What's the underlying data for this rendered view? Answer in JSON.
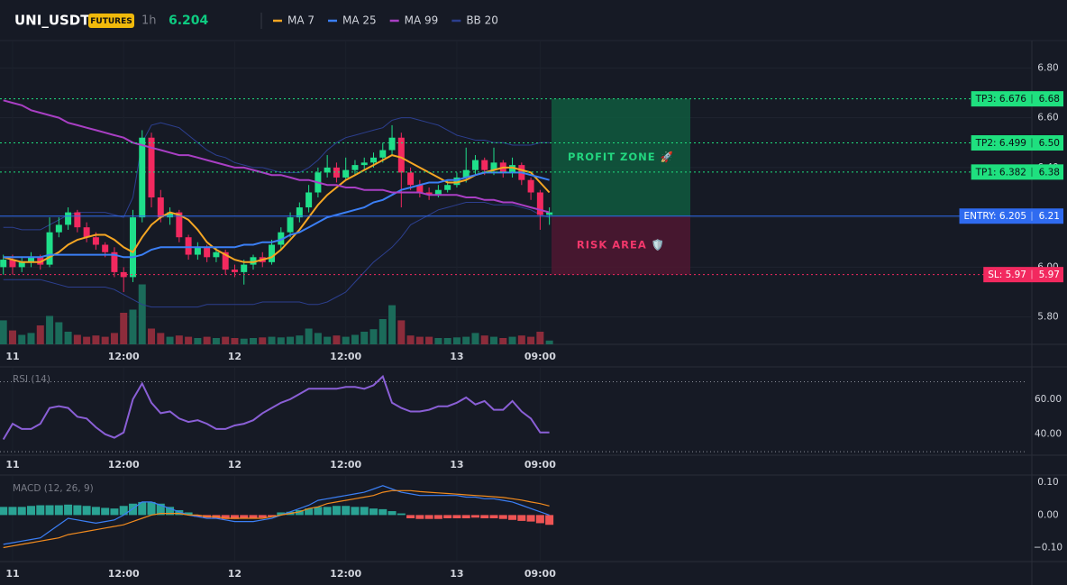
{
  "header": {
    "symbol": "UNI_USDT",
    "badge": "FUTURES",
    "interval": "1h",
    "price": 6.204
  },
  "chart_data": [
    {
      "type": "candlestick",
      "categories": [
        null,
        "11",
        null,
        null,
        null,
        null,
        null,
        null,
        null,
        null,
        null,
        null,
        null,
        "12:00",
        null,
        null,
        null,
        null,
        null,
        null,
        null,
        null,
        null,
        null,
        null,
        "12",
        null,
        null,
        null,
        null,
        null,
        null,
        null,
        null,
        null,
        null,
        null,
        "12:00",
        null,
        null,
        null,
        null,
        null,
        null,
        null,
        null,
        null,
        null,
        null,
        "13",
        null,
        null,
        null,
        null,
        null,
        null,
        null,
        null,
        "09:00",
        null
      ],
      "open": [
        6.0,
        6.03,
        6.0,
        6.02,
        6.04,
        6.01,
        6.14,
        6.17,
        6.22,
        6.16,
        6.12,
        6.09,
        6.06,
        5.98,
        5.96,
        6.2,
        6.52,
        6.28,
        6.2,
        6.22,
        6.12,
        6.05,
        6.08,
        6.04,
        6.06,
        5.99,
        5.98,
        6.01,
        6.04,
        6.02,
        6.09,
        6.14,
        6.2,
        6.24,
        6.3,
        6.38,
        6.4,
        6.36,
        6.39,
        6.41,
        6.42,
        6.44,
        6.47,
        6.52,
        6.38,
        6.33,
        6.3,
        6.29,
        6.31,
        6.33,
        6.36,
        6.39,
        6.43,
        6.39,
        6.42,
        6.38,
        6.41,
        6.35,
        6.3,
        6.21
      ],
      "high": [
        6.05,
        6.05,
        6.04,
        6.06,
        6.05,
        6.2,
        6.2,
        6.24,
        6.23,
        6.18,
        6.14,
        6.1,
        6.08,
        6.0,
        6.23,
        6.55,
        6.54,
        6.31,
        6.24,
        6.23,
        6.13,
        6.1,
        6.09,
        6.08,
        6.07,
        6.01,
        6.03,
        6.05,
        6.06,
        6.11,
        6.16,
        6.22,
        6.26,
        6.33,
        6.4,
        6.45,
        6.42,
        6.44,
        6.43,
        6.44,
        6.46,
        6.5,
        6.57,
        6.54,
        6.4,
        6.35,
        6.32,
        6.33,
        6.35,
        6.38,
        6.48,
        6.45,
        6.44,
        6.48,
        6.43,
        6.44,
        6.42,
        6.36,
        6.31,
        6.24
      ],
      "low": [
        5.97,
        5.97,
        5.98,
        6.0,
        5.99,
        6.0,
        6.12,
        6.15,
        6.14,
        6.1,
        6.07,
        6.04,
        5.96,
        5.9,
        5.94,
        6.18,
        6.24,
        6.18,
        6.17,
        6.1,
        6.03,
        6.03,
        6.02,
        6.02,
        5.97,
        5.96,
        5.93,
        5.99,
        6.0,
        6.01,
        6.07,
        6.12,
        6.18,
        6.22,
        6.28,
        6.36,
        6.34,
        6.35,
        6.37,
        6.39,
        6.4,
        6.42,
        6.45,
        6.24,
        6.31,
        6.28,
        6.27,
        6.28,
        6.3,
        6.32,
        6.34,
        6.37,
        6.37,
        6.37,
        6.36,
        6.36,
        6.33,
        6.27,
        6.15,
        6.17
      ],
      "close": [
        6.03,
        6.0,
        6.02,
        6.04,
        6.01,
        6.14,
        6.17,
        6.22,
        6.16,
        6.12,
        6.09,
        6.06,
        5.98,
        5.96,
        6.2,
        6.52,
        6.28,
        6.2,
        6.22,
        6.12,
        6.05,
        6.08,
        6.04,
        6.06,
        5.99,
        5.98,
        6.01,
        6.04,
        6.02,
        6.09,
        6.14,
        6.2,
        6.24,
        6.3,
        6.38,
        6.4,
        6.36,
        6.39,
        6.41,
        6.42,
        6.44,
        6.47,
        6.52,
        6.38,
        6.33,
        6.3,
        6.29,
        6.31,
        6.33,
        6.36,
        6.39,
        6.43,
        6.39,
        6.42,
        6.38,
        6.41,
        6.35,
        6.3,
        6.21,
        6.22
      ],
      "volume": [
        38,
        22,
        15,
        18,
        30,
        45,
        35,
        20,
        15,
        12,
        14,
        12,
        18,
        50,
        55,
        95,
        25,
        18,
        12,
        14,
        12,
        10,
        12,
        10,
        12,
        10,
        9,
        10,
        11,
        12,
        11,
        12,
        14,
        25,
        18,
        12,
        14,
        12,
        15,
        20,
        24,
        40,
        62,
        38,
        14,
        12,
        12,
        10,
        10,
        11,
        12,
        18,
        14,
        12,
        10,
        12,
        14,
        12,
        20,
        6
      ],
      "volume_ylim": [
        0,
        100
      ],
      "up_color": "#1fdf8a",
      "down_color": "#f2295f",
      "volume_up_color": "#1b6b5a",
      "volume_down_color": "#8c2c3b",
      "series": [
        {
          "name": "MA 7",
          "color": "#f5a623",
          "values": [
            6.04,
            6.03,
            6.02,
            6.02,
            6.02,
            6.04,
            6.06,
            6.09,
            6.11,
            6.12,
            6.13,
            6.13,
            6.11,
            6.08,
            6.06,
            6.12,
            6.17,
            6.2,
            6.22,
            6.21,
            6.19,
            6.15,
            6.1,
            6.07,
            6.05,
            6.03,
            6.02,
            6.02,
            6.03,
            6.04,
            6.07,
            6.11,
            6.15,
            6.2,
            6.25,
            6.29,
            6.32,
            6.35,
            6.37,
            6.39,
            6.41,
            6.43,
            6.45,
            6.44,
            6.42,
            6.4,
            6.38,
            6.36,
            6.34,
            6.34,
            6.35,
            6.37,
            6.38,
            6.39,
            6.4,
            6.4,
            6.39,
            6.38,
            6.34,
            6.3
          ]
        },
        {
          "name": "MA 25",
          "color": "#3b7ff5",
          "values": [
            6.04,
            6.04,
            6.04,
            6.04,
            6.04,
            6.05,
            6.05,
            6.05,
            6.05,
            6.05,
            6.05,
            6.05,
            6.05,
            6.04,
            6.04,
            6.05,
            6.07,
            6.08,
            6.08,
            6.08,
            6.08,
            6.08,
            6.08,
            6.08,
            6.08,
            6.08,
            6.09,
            6.09,
            6.1,
            6.1,
            6.11,
            6.13,
            6.14,
            6.16,
            6.18,
            6.2,
            6.21,
            6.22,
            6.23,
            6.24,
            6.26,
            6.27,
            6.29,
            6.31,
            6.32,
            6.33,
            6.34,
            6.34,
            6.35,
            6.35,
            6.36,
            6.37,
            6.38,
            6.38,
            6.38,
            6.38,
            6.38,
            6.37,
            6.36,
            6.35
          ]
        },
        {
          "name": "MA 99",
          "color": "#a93fc4",
          "values": [
            6.67,
            6.66,
            6.65,
            6.63,
            6.62,
            6.61,
            6.6,
            6.58,
            6.57,
            6.56,
            6.55,
            6.54,
            6.53,
            6.52,
            6.5,
            6.49,
            6.48,
            6.47,
            6.46,
            6.45,
            6.45,
            6.44,
            6.43,
            6.42,
            6.41,
            6.4,
            6.4,
            6.39,
            6.38,
            6.37,
            6.37,
            6.36,
            6.35,
            6.35,
            6.34,
            6.33,
            6.33,
            6.32,
            6.32,
            6.31,
            6.31,
            6.31,
            6.3,
            6.3,
            6.3,
            6.3,
            6.29,
            6.29,
            6.29,
            6.29,
            6.28,
            6.28,
            6.27,
            6.27,
            6.26,
            6.26,
            6.25,
            6.24,
            6.23,
            6.22
          ]
        },
        {
          "name": "BB 20",
          "color": "#2c3f8f",
          "upper": [
            6.16,
            6.16,
            6.15,
            6.15,
            6.15,
            6.17,
            6.19,
            6.21,
            6.22,
            6.22,
            6.22,
            6.22,
            6.21,
            6.2,
            6.28,
            6.5,
            6.57,
            6.58,
            6.57,
            6.56,
            6.53,
            6.5,
            6.47,
            6.45,
            6.44,
            6.42,
            6.41,
            6.4,
            6.4,
            6.39,
            6.38,
            6.38,
            6.38,
            6.4,
            6.43,
            6.47,
            6.5,
            6.52,
            6.53,
            6.54,
            6.55,
            6.56,
            6.59,
            6.6,
            6.6,
            6.59,
            6.58,
            6.57,
            6.55,
            6.53,
            6.52,
            6.51,
            6.51,
            6.5,
            6.5,
            6.49,
            6.49,
            6.49,
            6.5,
            6.5
          ],
          "lower": [
            5.95,
            5.95,
            5.95,
            5.95,
            5.95,
            5.94,
            5.93,
            5.92,
            5.92,
            5.92,
            5.92,
            5.92,
            5.91,
            5.89,
            5.87,
            5.85,
            5.84,
            5.84,
            5.84,
            5.84,
            5.84,
            5.84,
            5.85,
            5.85,
            5.85,
            5.85,
            5.85,
            5.85,
            5.86,
            5.86,
            5.86,
            5.86,
            5.86,
            5.85,
            5.85,
            5.86,
            5.88,
            5.9,
            5.94,
            5.98,
            6.02,
            6.05,
            6.08,
            6.12,
            6.17,
            6.19,
            6.21,
            6.23,
            6.24,
            6.25,
            6.26,
            6.26,
            6.26,
            6.25,
            6.25,
            6.25,
            6.24,
            6.23,
            6.21,
            6.2
          ]
        }
      ],
      "ylim": [
        5.69,
        6.91
      ],
      "yticks": [
        {
          "value": 5.8,
          "label": "5.80"
        },
        {
          "value": 6.0,
          "label": "6.00"
        },
        {
          "value": 6.2,
          "label": "6.20"
        },
        {
          "value": 6.4,
          "label": "6.40"
        },
        {
          "value": 6.6,
          "label": "6.60"
        },
        {
          "value": 6.8,
          "label": "6.80"
        }
      ],
      "grid": true,
      "levels": [
        {
          "name": "TP3: 6.676",
          "value": 6.676,
          "value_label": "6.68",
          "color": "#1fe07f",
          "style": "dotted"
        },
        {
          "name": "TP2: 6.499",
          "value": 6.499,
          "value_label": "6.50",
          "color": "#1fe07f",
          "style": "dotted"
        },
        {
          "name": "TP1: 6.382",
          "value": 6.382,
          "value_label": "6.38",
          "color": "#1fe07f",
          "style": "dotted"
        },
        {
          "name": "ENTRY: 6.205",
          "value": 6.205,
          "value_label": "6.21",
          "color": "#2f6bf0",
          "style": "solid"
        },
        {
          "name": "SL: 5.97",
          "value": 5.97,
          "value_label": "5.97",
          "color": "#f2295f",
          "style": "dotted"
        }
      ],
      "zones": [
        {
          "label": "PROFIT ZONE 🚀",
          "color": "#0f5a3e",
          "text_color": "#22d67f"
        },
        {
          "label": "RISK AREA 🛡️",
          "color": "#4f1731",
          "text_color": "#f2376b"
        }
      ]
    },
    {
      "type": "line",
      "title": "RSI (14)",
      "color": "#8a5fd6",
      "values": [
        37,
        46,
        43,
        43,
        46,
        55,
        56,
        55,
        50,
        49,
        44,
        40,
        38,
        41,
        60,
        69,
        58,
        52,
        53,
        49,
        47,
        48,
        46,
        43,
        43,
        45,
        46,
        48,
        52,
        55,
        58,
        60,
        63,
        66,
        66,
        66,
        66,
        67,
        67,
        66,
        68,
        73,
        58,
        55,
        53,
        53,
        54,
        56,
        56,
        58,
        61,
        57,
        59,
        54,
        54,
        59,
        53,
        49,
        41,
        41
      ],
      "ylim": [
        28,
        78
      ],
      "yticks": [
        {
          "value": 40,
          "label": "40.00"
        },
        {
          "value": 60,
          "label": "60.00"
        }
      ],
      "bands": [
        70,
        30
      ]
    },
    {
      "type": "macd",
      "title": "MACD (12, 26, 9)",
      "macd": [
        -0.09,
        -0.085,
        -0.08,
        -0.075,
        -0.07,
        -0.05,
        -0.03,
        -0.01,
        -0.015,
        -0.02,
        -0.025,
        -0.02,
        -0.015,
        0.0,
        0.02,
        0.04,
        0.04,
        0.03,
        0.02,
        0.01,
        0.0,
        -0.005,
        -0.01,
        -0.01,
        -0.015,
        -0.02,
        -0.02,
        -0.02,
        -0.015,
        -0.01,
        0.0,
        0.01,
        0.02,
        0.03,
        0.045,
        0.05,
        0.055,
        0.06,
        0.065,
        0.07,
        0.08,
        0.09,
        0.08,
        0.07,
        0.065,
        0.06,
        0.06,
        0.06,
        0.06,
        0.06,
        0.055,
        0.055,
        0.05,
        0.05,
        0.045,
        0.04,
        0.03,
        0.02,
        0.01,
        0.0
      ],
      "signal": [
        -0.1,
        -0.095,
        -0.09,
        -0.085,
        -0.08,
        -0.075,
        -0.07,
        -0.06,
        -0.055,
        -0.05,
        -0.045,
        -0.04,
        -0.035,
        -0.03,
        -0.02,
        -0.01,
        0.0,
        0.005,
        0.005,
        0.005,
        0.0,
        0.0,
        -0.005,
        -0.005,
        -0.01,
        -0.01,
        -0.01,
        -0.01,
        -0.01,
        -0.005,
        0.0,
        0.005,
        0.01,
        0.02,
        0.025,
        0.035,
        0.04,
        0.045,
        0.05,
        0.055,
        0.06,
        0.07,
        0.075,
        0.075,
        0.075,
        0.072,
        0.07,
        0.068,
        0.066,
        0.064,
        0.062,
        0.06,
        0.058,
        0.056,
        0.054,
        0.05,
        0.046,
        0.04,
        0.035,
        0.028
      ],
      "histogram": [
        0.025,
        0.025,
        0.025,
        0.028,
        0.03,
        0.03,
        0.03,
        0.032,
        0.03,
        0.028,
        0.025,
        0.022,
        0.02,
        0.028,
        0.035,
        0.04,
        0.04,
        0.035,
        0.025,
        0.015,
        0.008,
        -0.005,
        -0.008,
        -0.01,
        -0.012,
        -0.012,
        -0.01,
        -0.01,
        -0.008,
        -0.005,
        0.008,
        0.01,
        0.015,
        0.02,
        0.025,
        0.025,
        0.028,
        0.028,
        0.025,
        0.025,
        0.02,
        0.018,
        0.012,
        0.005,
        -0.01,
        -0.012,
        -0.012,
        -0.012,
        -0.01,
        -0.01,
        -0.01,
        -0.008,
        -0.01,
        -0.01,
        -0.012,
        -0.015,
        -0.018,
        -0.02,
        -0.025,
        -0.03
      ],
      "macd_color": "#3b7ff5",
      "signal_color": "#f28b1e",
      "hist_up_color": "#2aa394",
      "hist_down_color": "#ee5454",
      "ylim": [
        -0.14,
        0.12
      ],
      "yticks": [
        {
          "value": -0.1,
          "label": "−0.10"
        },
        {
          "value": 0,
          "label": "0.00"
        },
        {
          "value": 0.1,
          "label": "0.10"
        }
      ]
    }
  ]
}
